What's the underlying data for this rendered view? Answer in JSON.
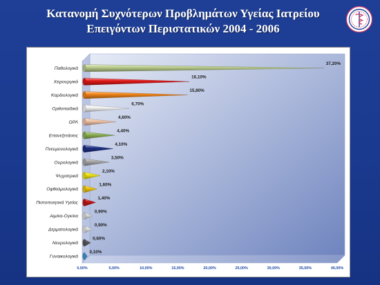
{
  "title": {
    "line1": "Κατανομή Συχνότερων Προβλημάτων Υγείας Ιατρείου",
    "line2": "Επειγόντων Περιστατικών 2004 - 2006"
  },
  "logo": {
    "icon": "medical-emblem-icon"
  },
  "chart_data": {
    "type": "bar",
    "orientation": "horizontal",
    "bar_style": "3d-cone",
    "categories": [
      "Παθολογικά",
      "Χειρουργικά",
      "Καρδιολογικά",
      "Ορθοπαιδικά",
      "ΩΡΛ",
      "Επανεξετάσεις",
      "Πνευμονολογικά",
      "Ουρολογικά",
      "Ψυχιατρικά",
      "Οφθαλμολογικά",
      "Πιστοποιητικά Υγείας",
      "Αιμ/κα-Ογκ/κα",
      "Δερματολογικά",
      "Νευρολογικά",
      "Γυναικολογικά"
    ],
    "values": [
      37.2,
      16.1,
      15.8,
      6.7,
      4.6,
      4.4,
      4.1,
      3.5,
      2.1,
      1.6,
      1.4,
      0.9,
      0.9,
      0.6,
      0.1
    ],
    "value_labels": [
      "37,20%",
      "16,10%",
      "15,80%",
      "6,70%",
      "4,60%",
      "4,40%",
      "4,10%",
      "3,50%",
      "2,10%",
      "1,60%",
      "1,40%",
      "0,90%",
      "0,90%",
      "0,60%",
      "0,10%"
    ],
    "colors": [
      "#b9cc8a",
      "#e01818",
      "#f08418",
      "#f2f2f2",
      "#f0c2a6",
      "#8db054",
      "#1d2e82",
      "#a7a7a7",
      "#efe312",
      "#efc410",
      "#c41414",
      "#dcdcdc",
      "#e4e4e4",
      "#585858",
      "#3f95ce"
    ],
    "xticks": [
      "0,00%",
      "5,00%",
      "10,00%",
      "15,00%",
      "20,00%",
      "25,00%",
      "30,00%",
      "35,00%",
      "40,00%"
    ],
    "xlim": [
      0,
      40
    ],
    "grid": false,
    "legend": "none"
  }
}
